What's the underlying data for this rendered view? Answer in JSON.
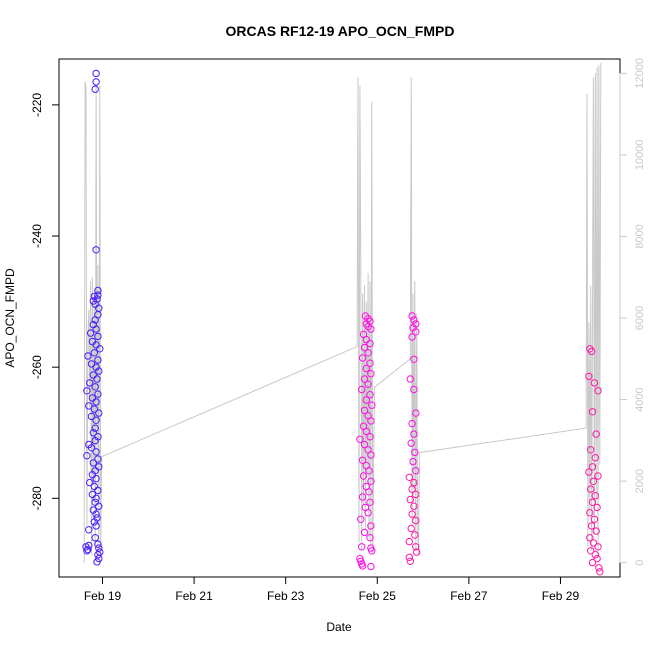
{
  "chart_data": {
    "type": "scatter",
    "title": "ORCAS RF12-19 APO_OCN_FMPD",
    "xlabel": "Date",
    "ylabel": "APO_OCN_FMPD",
    "x_ticks": [
      "Feb 19",
      "Feb 21",
      "Feb 23",
      "Feb 25",
      "Feb 27",
      "Feb 29"
    ],
    "x_tick_days": [
      19,
      21,
      23,
      25,
      27,
      29
    ],
    "xlim": [
      18.05,
      30.3
    ],
    "ylim": [
      -292,
      -213
    ],
    "y_ticks": [
      -220,
      -240,
      -260,
      -280
    ],
    "y2_ticks": [
      0,
      2000,
      4000,
      6000,
      8000,
      10000,
      12000
    ],
    "y2lim": [
      -350,
      12350
    ],
    "grid": false,
    "series": [
      {
        "color": "#4b1dff",
        "points": [
          [
            18.86,
            -215.2
          ],
          [
            18.86,
            -216.5
          ],
          [
            18.84,
            -217.6
          ],
          [
            18.86,
            -242.1
          ],
          [
            18.9,
            -248.3
          ],
          [
            18.9,
            -249.0
          ],
          [
            18.88,
            -249.6
          ],
          [
            18.82,
            -249.2
          ],
          [
            18.8,
            -249.9
          ],
          [
            18.84,
            -250.4
          ],
          [
            18.92,
            -251.0
          ],
          [
            18.9,
            -252.0
          ],
          [
            18.84,
            -252.8
          ],
          [
            18.8,
            -253.5
          ],
          [
            18.86,
            -254.2
          ],
          [
            18.74,
            -254.8
          ],
          [
            18.9,
            -255.3
          ],
          [
            18.78,
            -256.1
          ],
          [
            18.86,
            -256.6
          ],
          [
            18.94,
            -257.2
          ],
          [
            18.82,
            -257.8
          ],
          [
            18.68,
            -258.3
          ],
          [
            18.9,
            -258.9
          ],
          [
            18.76,
            -259.5
          ],
          [
            18.86,
            -260.0
          ],
          [
            18.92,
            -260.6
          ],
          [
            18.8,
            -261.2
          ],
          [
            18.88,
            -261.8
          ],
          [
            18.72,
            -262.4
          ],
          [
            18.84,
            -263.0
          ],
          [
            18.66,
            -263.6
          ],
          [
            18.9,
            -264.1
          ],
          [
            18.78,
            -264.7
          ],
          [
            18.86,
            -265.3
          ],
          [
            18.7,
            -265.9
          ],
          [
            18.82,
            -266.4
          ],
          [
            18.92,
            -267.0
          ],
          [
            18.76,
            -267.5
          ],
          [
            18.86,
            -268.1
          ],
          [
            18.84,
            -269.3
          ],
          [
            18.8,
            -270.0
          ],
          [
            18.9,
            -270.6
          ],
          [
            18.84,
            -271.2
          ],
          [
            18.7,
            -271.8
          ],
          [
            18.76,
            -272.3
          ],
          [
            18.86,
            -272.9
          ],
          [
            18.66,
            -273.5
          ],
          [
            18.9,
            -274.0
          ],
          [
            18.8,
            -274.6
          ],
          [
            18.92,
            -275.2
          ],
          [
            18.84,
            -275.8
          ],
          [
            18.78,
            -276.4
          ],
          [
            18.86,
            -277.0
          ],
          [
            18.72,
            -277.6
          ],
          [
            18.82,
            -278.2
          ],
          [
            18.9,
            -278.8
          ],
          [
            18.78,
            -279.4
          ],
          [
            18.86,
            -280.0
          ],
          [
            18.84,
            -280.6
          ],
          [
            18.92,
            -281.2
          ],
          [
            18.8,
            -281.8
          ],
          [
            18.86,
            -282.4
          ],
          [
            18.88,
            -283.0
          ],
          [
            18.82,
            -283.6
          ],
          [
            18.86,
            -284.2
          ],
          [
            18.7,
            -284.8
          ],
          [
            18.84,
            -286.0
          ],
          [
            18.9,
            -287.0
          ],
          [
            18.64,
            -287.4
          ],
          [
            18.68,
            -287.8
          ],
          [
            18.66,
            -288.0
          ],
          [
            18.7,
            -287.2
          ],
          [
            18.92,
            -287.6
          ],
          [
            18.94,
            -288.2
          ],
          [
            18.9,
            -288.6
          ],
          [
            18.92,
            -289.2
          ],
          [
            18.88,
            -289.7
          ]
        ]
      },
      {
        "color": "#ff10e8",
        "points": [
          [
            24.74,
            -252.2
          ],
          [
            24.8,
            -252.6
          ],
          [
            24.84,
            -253.0
          ],
          [
            24.76,
            -253.4
          ],
          [
            24.8,
            -253.8
          ],
          [
            24.86,
            -254.2
          ],
          [
            24.7,
            -255.0
          ],
          [
            24.76,
            -255.8
          ],
          [
            24.84,
            -256.4
          ],
          [
            24.72,
            -257.0
          ],
          [
            24.8,
            -257.8
          ],
          [
            24.68,
            -258.6
          ],
          [
            24.84,
            -259.4
          ],
          [
            24.76,
            -260.2
          ],
          [
            24.86,
            -261.0
          ],
          [
            24.72,
            -261.8
          ],
          [
            24.8,
            -262.6
          ],
          [
            24.66,
            -263.4
          ],
          [
            24.84,
            -264.2
          ],
          [
            24.76,
            -265.0
          ],
          [
            24.88,
            -265.8
          ],
          [
            24.72,
            -266.6
          ],
          [
            24.8,
            -267.4
          ],
          [
            24.86,
            -268.2
          ],
          [
            24.7,
            -269.0
          ],
          [
            24.76,
            -269.8
          ],
          [
            24.84,
            -270.6
          ],
          [
            24.62,
            -271.0
          ],
          [
            24.72,
            -271.8
          ],
          [
            24.8,
            -272.6
          ],
          [
            24.86,
            -273.4
          ],
          [
            24.68,
            -274.2
          ],
          [
            24.76,
            -275.0
          ],
          [
            24.82,
            -275.8
          ],
          [
            24.7,
            -276.6
          ],
          [
            24.86,
            -277.4
          ],
          [
            24.76,
            -278.2
          ],
          [
            24.82,
            -279.0
          ],
          [
            24.68,
            -279.8
          ],
          [
            24.84,
            -280.6
          ],
          [
            24.74,
            -281.4
          ],
          [
            24.8,
            -282.2
          ],
          [
            24.64,
            -283.2
          ],
          [
            24.86,
            -284.2
          ],
          [
            24.72,
            -285.2
          ],
          [
            24.84,
            -286.0
          ],
          [
            24.66,
            -287.4
          ],
          [
            24.86,
            -287.6
          ],
          [
            24.88,
            -288.0
          ],
          [
            24.62,
            -289.2
          ],
          [
            24.64,
            -289.6
          ],
          [
            24.66,
            -290.0
          ],
          [
            24.68,
            -290.3
          ],
          [
            24.86,
            -290.4
          ],
          [
            25.76,
            -252.2
          ],
          [
            25.8,
            -252.8
          ],
          [
            25.84,
            -253.4
          ],
          [
            25.78,
            -254.0
          ],
          [
            25.84,
            -254.6
          ],
          [
            25.76,
            -255.4
          ],
          [
            25.8,
            -258.8
          ],
          [
            25.72,
            -261.8
          ],
          [
            25.8,
            -263.4
          ],
          [
            25.84,
            -267.0
          ],
          [
            25.76,
            -268.6
          ],
          [
            25.8,
            -270.2
          ],
          [
            25.74,
            -271.6
          ],
          [
            25.82,
            -273.0
          ],
          [
            25.78,
            -274.4
          ],
          [
            25.84,
            -275.8
          ]
        ]
      },
      {
        "color": "#ff1aa6",
        "points": [
          [
            25.7,
            -276.8
          ],
          [
            25.8,
            -277.6
          ],
          [
            25.76,
            -278.6
          ],
          [
            25.84,
            -279.4
          ],
          [
            25.72,
            -280.2
          ],
          [
            25.8,
            -281.2
          ],
          [
            25.76,
            -282.4
          ],
          [
            25.84,
            -283.4
          ],
          [
            25.74,
            -284.6
          ],
          [
            25.82,
            -285.6
          ],
          [
            25.7,
            -286.6
          ],
          [
            25.84,
            -287.4
          ],
          [
            25.86,
            -288.2
          ],
          [
            25.7,
            -289.0
          ],
          [
            25.72,
            -289.6
          ],
          [
            29.64,
            -257.2
          ],
          [
            29.68,
            -257.6
          ],
          [
            29.62,
            -261.4
          ],
          [
            29.74,
            -262.4
          ],
          [
            29.82,
            -263.6
          ],
          [
            29.7,
            -266.8
          ],
          [
            29.78,
            -270.2
          ],
          [
            29.66,
            -272.6
          ],
          [
            29.76,
            -273.8
          ],
          [
            29.7,
            -275.2
          ],
          [
            29.62,
            -276.0
          ],
          [
            29.82,
            -276.6
          ],
          [
            29.72,
            -277.4
          ],
          [
            29.66,
            -278.6
          ],
          [
            29.76,
            -279.6
          ],
          [
            29.7,
            -280.6
          ],
          [
            29.8,
            -281.4
          ],
          [
            29.64,
            -282.2
          ],
          [
            29.74,
            -283.2
          ],
          [
            29.68,
            -284.2
          ],
          [
            29.78,
            -285.0
          ],
          [
            29.64,
            -286.0
          ],
          [
            29.72,
            -286.8
          ],
          [
            29.82,
            -287.4
          ],
          [
            29.66,
            -288.0
          ],
          [
            29.76,
            -288.6
          ],
          [
            29.8,
            -289.2
          ],
          [
            29.7,
            -289.8
          ],
          [
            29.84,
            -290.6
          ],
          [
            29.86,
            -291.2
          ]
        ]
      }
    ],
    "altitude_profile": {
      "color": "#c8c8c8",
      "points": [
        [
          18.6,
          0
        ],
        [
          18.62,
          11800
        ],
        [
          18.64,
          11650
        ],
        [
          18.66,
          900
        ],
        [
          18.68,
          5500
        ],
        [
          18.7,
          6200
        ],
        [
          18.72,
          3800
        ],
        [
          18.74,
          6900
        ],
        [
          18.76,
          200
        ],
        [
          18.78,
          7000
        ],
        [
          18.8,
          1900
        ],
        [
          18.82,
          6500
        ],
        [
          18.84,
          400
        ],
        [
          18.86,
          11700
        ],
        [
          18.88,
          2200
        ],
        [
          18.9,
          7300
        ],
        [
          18.92,
          200
        ],
        [
          18.94,
          11700
        ],
        [
          18.96,
          300
        ],
        [
          18.98,
          2600
        ],
        [
          24.56,
          5300
        ],
        [
          24.58,
          11900
        ],
        [
          24.6,
          500
        ],
        [
          24.62,
          11700
        ],
        [
          24.64,
          7200
        ],
        [
          24.66,
          300
        ],
        [
          24.68,
          6600
        ],
        [
          24.7,
          1400
        ],
        [
          24.72,
          6800
        ],
        [
          24.74,
          800
        ],
        [
          24.76,
          6400
        ],
        [
          24.78,
          2200
        ],
        [
          24.8,
          7100
        ],
        [
          24.82,
          600
        ],
        [
          24.84,
          6900
        ],
        [
          24.86,
          400
        ],
        [
          24.88,
          11300
        ],
        [
          24.9,
          200
        ],
        [
          24.94,
          4300
        ],
        [
          25.72,
          5000
        ],
        [
          25.74,
          11900
        ],
        [
          25.76,
          900
        ],
        [
          25.78,
          6600
        ],
        [
          25.8,
          1800
        ],
        [
          25.82,
          6900
        ],
        [
          25.84,
          300
        ],
        [
          25.86,
          6100
        ],
        [
          25.88,
          1000
        ],
        [
          25.9,
          200
        ],
        [
          25.92,
          2700
        ],
        [
          29.56,
          3300
        ],
        [
          29.58,
          11500
        ],
        [
          29.6,
          400
        ],
        [
          29.62,
          5900
        ],
        [
          29.64,
          1200
        ],
        [
          29.66,
          6800
        ],
        [
          29.68,
          300
        ],
        [
          29.7,
          6200
        ],
        [
          29.72,
          11900
        ],
        [
          29.74,
          700
        ],
        [
          29.76,
          12000
        ],
        [
          29.78,
          1600
        ],
        [
          29.8,
          12150
        ],
        [
          29.82,
          200
        ],
        [
          29.84,
          12200
        ],
        [
          29.86,
          2400
        ],
        [
          29.88,
          12250
        ]
      ]
    }
  }
}
